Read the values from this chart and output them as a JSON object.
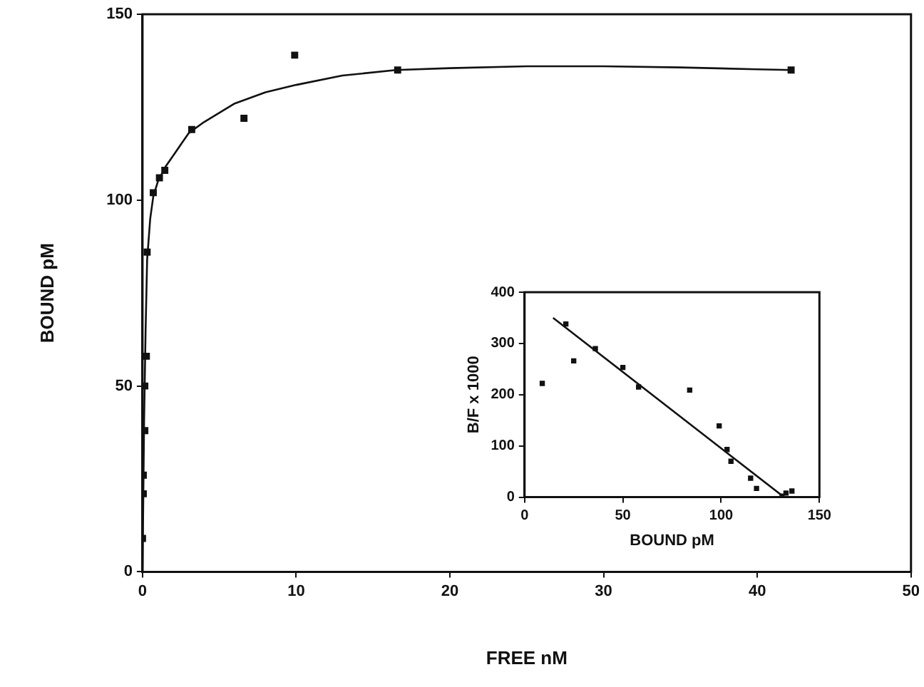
{
  "chart_data": [
    {
      "type": "scatter",
      "xlabel": "FREE nM",
      "ylabel": "BOUND pM",
      "xlim": [
        0,
        50
      ],
      "ylim": [
        0,
        150
      ],
      "xticks": [
        0,
        10,
        20,
        30,
        40,
        50
      ],
      "yticks": [
        0,
        50,
        100,
        150
      ],
      "grid": false,
      "legend": false,
      "series": [
        {
          "marker": "square",
          "color": "#111111",
          "x": [
            0,
            0.05,
            0.05,
            0.15,
            0.15,
            0.25,
            0.3,
            0.7,
            1.1,
            1.45,
            3.2,
            6.6,
            9.9,
            16.6,
            42.2
          ],
          "values": [
            9,
            21,
            26,
            38,
            50,
            58,
            86,
            102,
            106,
            108,
            119,
            122,
            139,
            135,
            135
          ]
        },
        {
          "type": "line",
          "marker": "none",
          "color": "#111111",
          "x": [
            0,
            0.1,
            0.2,
            0.3,
            0.5,
            0.7,
            1,
            1.5,
            2,
            3,
            4,
            6,
            8,
            10,
            13,
            16.5,
            20,
            25,
            30,
            35,
            40,
            42.2
          ],
          "values": [
            0,
            40,
            65,
            84,
            95,
            101,
            105,
            109,
            112,
            118,
            121,
            126,
            129,
            131,
            133.5,
            135,
            135.5,
            136,
            136,
            135.7,
            135.2,
            135
          ]
        }
      ]
    },
    {
      "type": "scatter",
      "xlabel": "BOUND pM",
      "ylabel": "B/F x 1000",
      "xlim": [
        0,
        150
      ],
      "ylim": [
        0,
        400
      ],
      "xticks": [
        0,
        50,
        100,
        150
      ],
      "yticks": [
        0,
        100,
        200,
        300,
        400
      ],
      "grid": false,
      "legend": false,
      "series": [
        {
          "marker": "square",
          "color": "#111111",
          "x": [
            9,
            21,
            25,
            36,
            50,
            58,
            84,
            99,
            103,
            105,
            115,
            118,
            131,
            133,
            136
          ],
          "values": [
            222,
            338,
            266,
            290,
            253,
            215,
            209,
            139,
            93,
            70,
            37,
            17,
            2,
            8,
            12
          ]
        },
        {
          "type": "line",
          "marker": "none",
          "color": "#111111",
          "x": [
            14.5,
            132
          ],
          "values": [
            350,
            0
          ]
        }
      ]
    }
  ]
}
